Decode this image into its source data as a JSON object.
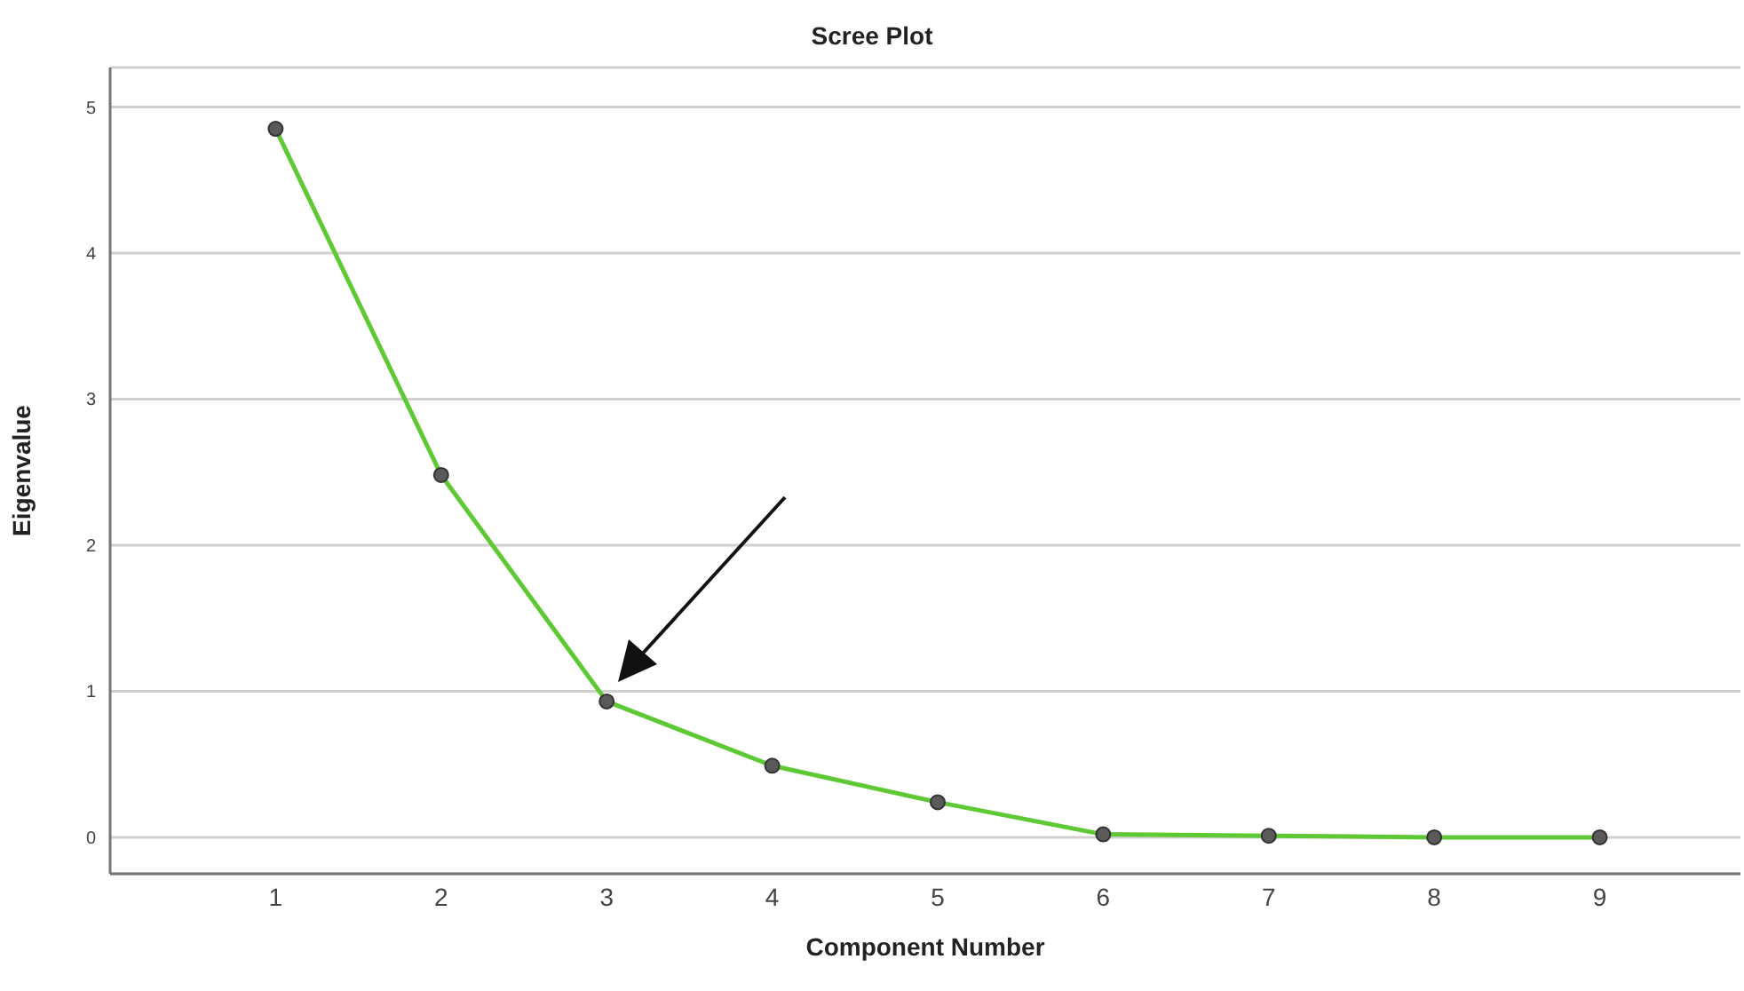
{
  "chart_data": {
    "type": "line",
    "title": "Scree Plot",
    "xlabel": "Component Number",
    "ylabel": "Eigenvalue",
    "x": [
      1,
      2,
      3,
      4,
      5,
      6,
      7,
      8,
      9
    ],
    "series": [
      {
        "color": "#5ec935",
        "values": [
          4.85,
          2.48,
          0.93,
          0.49,
          0.24,
          0.02,
          0.01,
          0.0,
          0.0
        ]
      }
    ],
    "xlim": [
      0,
      9.85
    ],
    "xticks": [
      1,
      2,
      3,
      4,
      5,
      6,
      7,
      8,
      9
    ],
    "ylim": [
      -0.25,
      5.27
    ],
    "yticks": [
      0,
      1,
      2,
      3,
      4,
      5
    ],
    "grid": "y",
    "marker": "circle",
    "line_style": "solid"
  }
}
